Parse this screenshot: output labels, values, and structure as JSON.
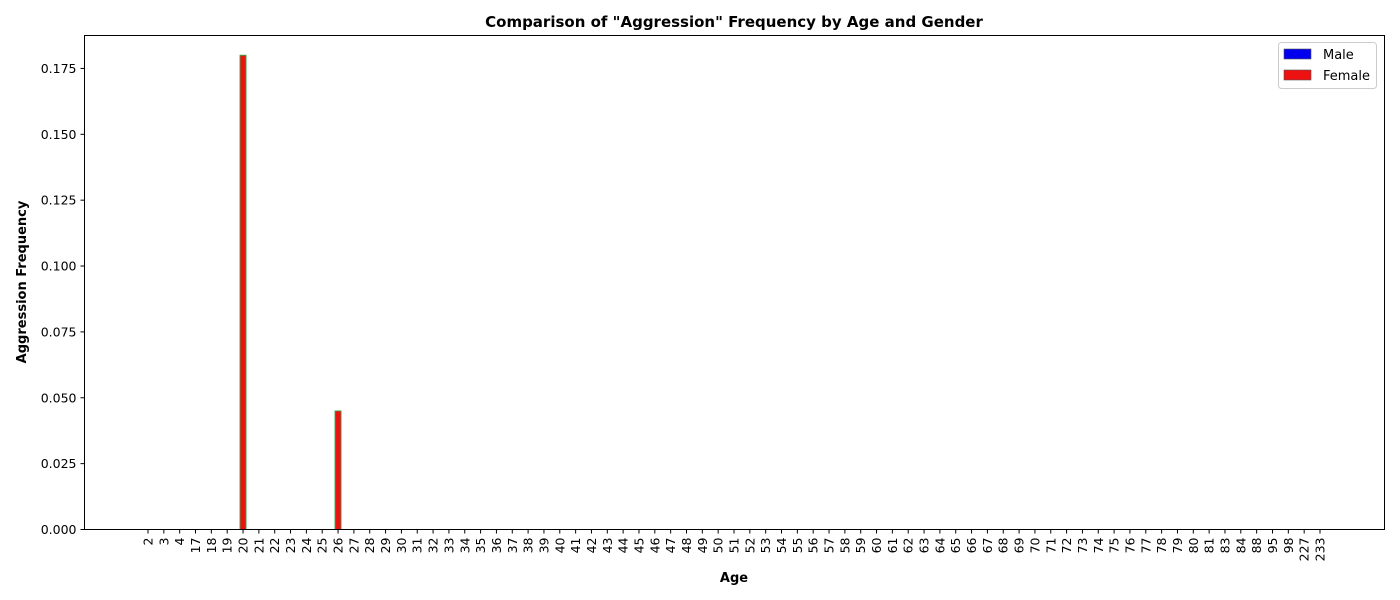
{
  "chart_data": {
    "type": "bar",
    "title": "Comparison of \"Aggression\" Frequency by Age and Gender",
    "xlabel": "Age",
    "ylabel": "Aggression Frequency",
    "ylim": [
      0,
      0.1875
    ],
    "yticks": [
      "0.000",
      "0.025",
      "0.050",
      "0.075",
      "0.100",
      "0.125",
      "0.150",
      "0.175"
    ],
    "categories": [
      "2",
      "3",
      "4",
      "17",
      "18",
      "19",
      "20",
      "21",
      "22",
      "23",
      "24",
      "25",
      "26",
      "27",
      "28",
      "29",
      "30",
      "31",
      "32",
      "33",
      "34",
      "35",
      "36",
      "37",
      "38",
      "39",
      "40",
      "41",
      "42",
      "43",
      "44",
      "45",
      "46",
      "47",
      "48",
      "49",
      "50",
      "51",
      "52",
      "53",
      "54",
      "55",
      "56",
      "57",
      "58",
      "59",
      "60",
      "61",
      "62",
      "63",
      "64",
      "65",
      "66",
      "67",
      "68",
      "69",
      "70",
      "71",
      "72",
      "73",
      "74",
      "75",
      "76",
      "77",
      "78",
      "79",
      "80",
      "81",
      "83",
      "84",
      "88",
      "95",
      "98",
      "227",
      "233"
    ],
    "series": [
      {
        "name": "Male",
        "color": "#0000ee",
        "values": [
          0,
          0,
          0,
          0,
          0,
          0,
          0.18,
          0,
          0,
          0,
          0,
          0,
          0.045,
          0,
          0,
          0,
          0,
          0,
          0,
          0,
          0,
          0,
          0,
          0,
          0,
          0,
          0,
          0,
          0,
          0,
          0,
          0,
          0,
          0,
          0,
          0,
          0,
          0,
          0,
          0,
          0,
          0,
          0,
          0,
          0,
          0,
          0,
          0,
          0,
          0,
          0,
          0,
          0,
          0,
          0,
          0,
          0,
          0,
          0,
          0,
          0,
          0,
          0,
          0,
          0,
          0,
          0,
          0,
          0,
          0,
          0,
          0,
          0,
          0,
          0
        ]
      },
      {
        "name": "Female",
        "color": "#ee1111",
        "values": [
          0,
          0,
          0,
          0,
          0,
          0,
          0.18,
          0,
          0,
          0,
          0,
          0,
          0.045,
          0,
          0,
          0,
          0,
          0,
          0,
          0,
          0,
          0,
          0,
          0,
          0,
          0,
          0,
          0,
          0,
          0,
          0,
          0,
          0,
          0,
          0,
          0,
          0,
          0,
          0,
          0,
          0,
          0,
          0,
          0,
          0,
          0,
          0,
          0,
          0,
          0,
          0,
          0,
          0,
          0,
          0,
          0,
          0,
          0,
          0,
          0,
          0,
          0,
          0,
          0,
          0,
          0,
          0,
          0,
          0,
          0,
          0,
          0,
          0,
          0,
          0
        ]
      }
    ],
    "bar_edge_color": "#33aa44",
    "grid": false,
    "legend_position": "top-right"
  }
}
